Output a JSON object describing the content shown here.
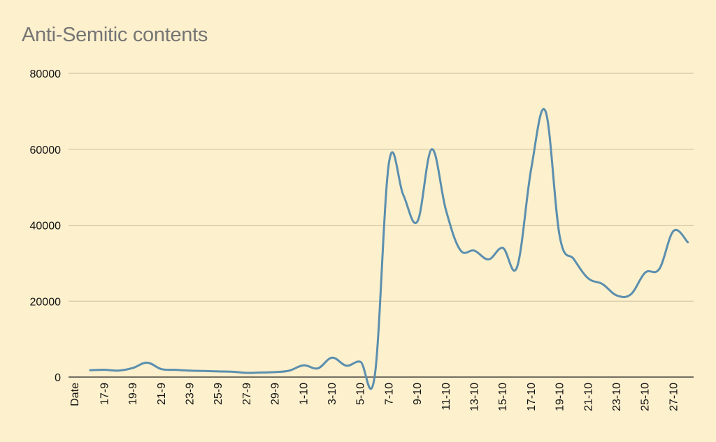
{
  "chart_data": {
    "type": "line",
    "title": "Anti-Semitic contents",
    "xlabel": "",
    "ylabel": "",
    "ylim": [
      0,
      80000
    ],
    "yticks": [
      0,
      20000,
      40000,
      60000,
      80000
    ],
    "grid": true,
    "legend": "none",
    "colors": {
      "background": "#fdf0cd",
      "line": "#5b8fae",
      "grid": "#c8bd9c",
      "title": "#757575"
    },
    "x_tick_labels": [
      "Date",
      "17-9",
      "19-9",
      "21-9",
      "23-9",
      "25-9",
      "27-9",
      "29-9",
      "1-10",
      "3-10",
      "5-10",
      "7-10",
      "9-10",
      "11-10",
      "13-10",
      "15-10",
      "17-10",
      "19-10",
      "21-10",
      "23-10",
      "25-10",
      "27-10"
    ],
    "x": [
      "16-9",
      "17-9",
      "18-9",
      "19-9",
      "20-9",
      "21-9",
      "22-9",
      "23-9",
      "24-9",
      "25-9",
      "26-9",
      "27-9",
      "28-9",
      "29-9",
      "30-9",
      "1-10",
      "2-10",
      "3-10",
      "4-10",
      "5-10",
      "6-10",
      "7-10",
      "8-10",
      "9-10",
      "10-10",
      "11-10",
      "12-10",
      "13-10",
      "14-10",
      "15-10",
      "16-10",
      "17-10",
      "18-10",
      "19-10",
      "20-10",
      "21-10",
      "22-10",
      "23-10",
      "24-10",
      "25-10",
      "26-10",
      "27-10",
      "28-10"
    ],
    "series": [
      {
        "values": [
          1800,
          1900,
          1700,
          2400,
          3800,
          2100,
          1900,
          1700,
          1600,
          1500,
          1400,
          1100,
          1200,
          1300,
          1700,
          3100,
          2300,
          5100,
          3000,
          4000,
          400,
          56500,
          48000,
          41000,
          60000,
          44000,
          33500,
          33300,
          31000,
          34000,
          29000,
          55000,
          70000,
          37000,
          31000,
          26000,
          24500,
          21500,
          21800,
          27500,
          28500,
          38500,
          35500
        ]
      }
    ]
  }
}
